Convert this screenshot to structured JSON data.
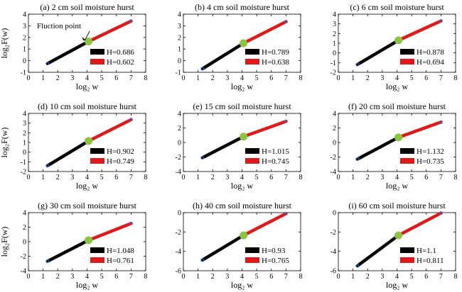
{
  "figure": {
    "xlabel": "log₂ w",
    "ylabel": "log₂F(w)",
    "legend_labels": [
      "H=",
      "H="
    ],
    "colors": {
      "segment1": "#000000",
      "segment2": "#e01a1a",
      "fluction": "#8cc63f",
      "endpoint": "#3a6fd8",
      "axis": "#000000"
    },
    "legend_position": "bottom-right"
  },
  "chart_data": [
    {
      "type": "line",
      "title": "(a) 2 cm soil moisture hurst",
      "xlim": [
        0,
        8
      ],
      "ylim": [
        -1,
        4
      ],
      "xticks": [
        0,
        1,
        2,
        3,
        4,
        5,
        6,
        7,
        8
      ],
      "yticks": [
        -1,
        0,
        1,
        2,
        3,
        4
      ],
      "xticklabels": [
        "0",
        "1",
        "2",
        "3",
        "4",
        "5",
        "6",
        "7",
        "8"
      ],
      "yticklabels": [
        "-1",
        "0",
        "1",
        "2",
        "3",
        "4"
      ],
      "start": [
        1.3,
        -0.25
      ],
      "fluction_point": [
        4.1,
        1.65
      ],
      "end": [
        7.0,
        3.4
      ],
      "H": [
        "0.686",
        "0.602"
      ],
      "annotation": "Fluction point"
    },
    {
      "type": "line",
      "title": "(b) 4 cm soil moisture hurst",
      "xlim": [
        0,
        8
      ],
      "ylim": [
        -1,
        4
      ],
      "xticks": [
        0,
        1,
        2,
        3,
        4,
        5,
        6,
        7,
        8
      ],
      "yticks": [
        -1,
        0,
        1,
        2,
        3,
        4
      ],
      "xticklabels": [
        "0",
        "1",
        "2",
        "3",
        "4",
        "5",
        "6",
        "7",
        "8"
      ],
      "yticklabels": [
        "-1",
        "0",
        "1",
        "2",
        "3",
        "4"
      ],
      "start": [
        1.3,
        -0.7
      ],
      "fluction_point": [
        4.1,
        1.5
      ],
      "end": [
        7.0,
        3.35
      ],
      "H": [
        "0.789",
        "0.638"
      ]
    },
    {
      "type": "line",
      "title": "(c) 6 cm soil moisture hurst",
      "xlim": [
        0,
        8
      ],
      "ylim": [
        -2,
        4
      ],
      "xticks": [
        0,
        1,
        2,
        3,
        4,
        5,
        6,
        7,
        8
      ],
      "yticks": [
        -2,
        -1,
        0,
        1,
        2,
        3,
        4
      ],
      "xticklabels": [
        "0",
        "1",
        "2",
        "3",
        "4",
        "5",
        "6",
        "7",
        "8"
      ],
      "yticklabels": [
        "-2",
        "-1",
        "0",
        "1",
        "2",
        "3",
        "4"
      ],
      "start": [
        1.3,
        -1.2
      ],
      "fluction_point": [
        4.1,
        1.3
      ],
      "end": [
        7.0,
        3.3
      ],
      "H": [
        "0.878",
        "0.694"
      ]
    },
    {
      "type": "line",
      "title": "(d) 10 cm soil moisture hurst",
      "xlim": [
        0,
        8
      ],
      "ylim": [
        -2,
        4
      ],
      "xticks": [
        0,
        1,
        2,
        3,
        4,
        5,
        6,
        7,
        8
      ],
      "yticks": [
        -2,
        -1,
        0,
        1,
        2,
        3,
        4
      ],
      "xticklabels": [
        "0",
        "1",
        "2",
        "3",
        "4",
        "5",
        "6",
        "7",
        "8"
      ],
      "yticklabels": [
        "-2",
        "-1",
        "0",
        "1",
        "2",
        "3",
        "4"
      ],
      "start": [
        1.3,
        -1.4
      ],
      "fluction_point": [
        4.1,
        1.15
      ],
      "end": [
        7.0,
        3.35
      ],
      "H": [
        "0.902",
        "0.749"
      ]
    },
    {
      "type": "line",
      "title": "(e) 15 cm soil moisture hurst",
      "xlim": [
        0,
        8
      ],
      "ylim": [
        -4,
        4
      ],
      "xticks": [
        0,
        1,
        2,
        3,
        4,
        5,
        6,
        7,
        8
      ],
      "yticks": [
        -4,
        -2,
        0,
        2,
        4
      ],
      "xticklabels": [
        "0",
        "1",
        "2",
        "3",
        "4",
        "5",
        "6",
        "7",
        "8"
      ],
      "yticklabels": [
        "-4",
        "-2",
        "0",
        "2",
        "4"
      ],
      "start": [
        1.3,
        -2.1
      ],
      "fluction_point": [
        4.1,
        0.8
      ],
      "end": [
        7.0,
        2.9
      ],
      "H": [
        "1.015",
        "0.745"
      ]
    },
    {
      "type": "line",
      "title": "(f) 20 cm soil moisture hurst",
      "xlim": [
        0,
        8
      ],
      "ylim": [
        -4,
        4
      ],
      "xticks": [
        0,
        1,
        2,
        3,
        4,
        5,
        6,
        7,
        8
      ],
      "yticks": [
        -4,
        -2,
        0,
        2,
        4
      ],
      "xticklabels": [
        "0",
        "1",
        "2",
        "3",
        "4",
        "5",
        "6",
        "7",
        "8"
      ],
      "yticklabels": [
        "-4",
        "-2",
        "0",
        "2",
        "4"
      ],
      "start": [
        1.3,
        -2.3
      ],
      "fluction_point": [
        4.1,
        0.7
      ],
      "end": [
        7.0,
        2.8
      ],
      "H": [
        "1.132",
        "0.735"
      ]
    },
    {
      "type": "line",
      "title": "(g) 30 cm soil moisture hurst",
      "xlim": [
        0,
        8
      ],
      "ylim": [
        -4,
        4
      ],
      "xticks": [
        0,
        1,
        2,
        3,
        4,
        5,
        6,
        7,
        8
      ],
      "yticks": [
        -4,
        -2,
        0,
        2,
        4
      ],
      "xticklabels": [
        "0",
        "1",
        "2",
        "3",
        "4",
        "5",
        "6",
        "7",
        "8"
      ],
      "yticklabels": [
        "-4",
        "-2",
        "0",
        "2",
        "4"
      ],
      "start": [
        1.3,
        -2.7
      ],
      "fluction_point": [
        4.1,
        0.2
      ],
      "end": [
        7.0,
        2.5
      ],
      "H": [
        "1.048",
        "0.761"
      ]
    },
    {
      "type": "line",
      "title": "(h) 40 cm soil moisture hurst",
      "xlim": [
        0,
        8
      ],
      "ylim": [
        -6,
        0
      ],
      "xticks": [
        0,
        1,
        2,
        3,
        4,
        5,
        6,
        7,
        8
      ],
      "yticks": [
        -6,
        -4,
        -2,
        0
      ],
      "xticklabels": [
        "0",
        "1",
        "2",
        "3",
        "4",
        "5",
        "6",
        "7",
        "8"
      ],
      "yticklabels": [
        "-6",
        "-4",
        "-2",
        "0"
      ],
      "start": [
        1.3,
        -4.9
      ],
      "fluction_point": [
        4.1,
        -2.35
      ],
      "end": [
        7.0,
        -0.1
      ],
      "H": [
        "0.93",
        "0.765"
      ]
    },
    {
      "type": "line",
      "title": "(i) 60 cm soil moisture hurst",
      "xlim": [
        0,
        8
      ],
      "ylim": [
        -6,
        0
      ],
      "xticks": [
        0,
        1,
        2,
        3,
        4,
        5,
        6,
        7,
        8
      ],
      "yticks": [
        -6,
        -4,
        -2,
        0
      ],
      "xticklabels": [
        "0",
        "1",
        "2",
        "3",
        "4",
        "5",
        "6",
        "7",
        "8"
      ],
      "yticklabels": [
        "-6",
        "-4",
        "-2",
        "0"
      ],
      "start": [
        1.3,
        -5.5
      ],
      "fluction_point": [
        4.1,
        -2.35
      ],
      "end": [
        7.0,
        -0.05
      ],
      "H": [
        "1.1",
        "0.811"
      ]
    }
  ]
}
